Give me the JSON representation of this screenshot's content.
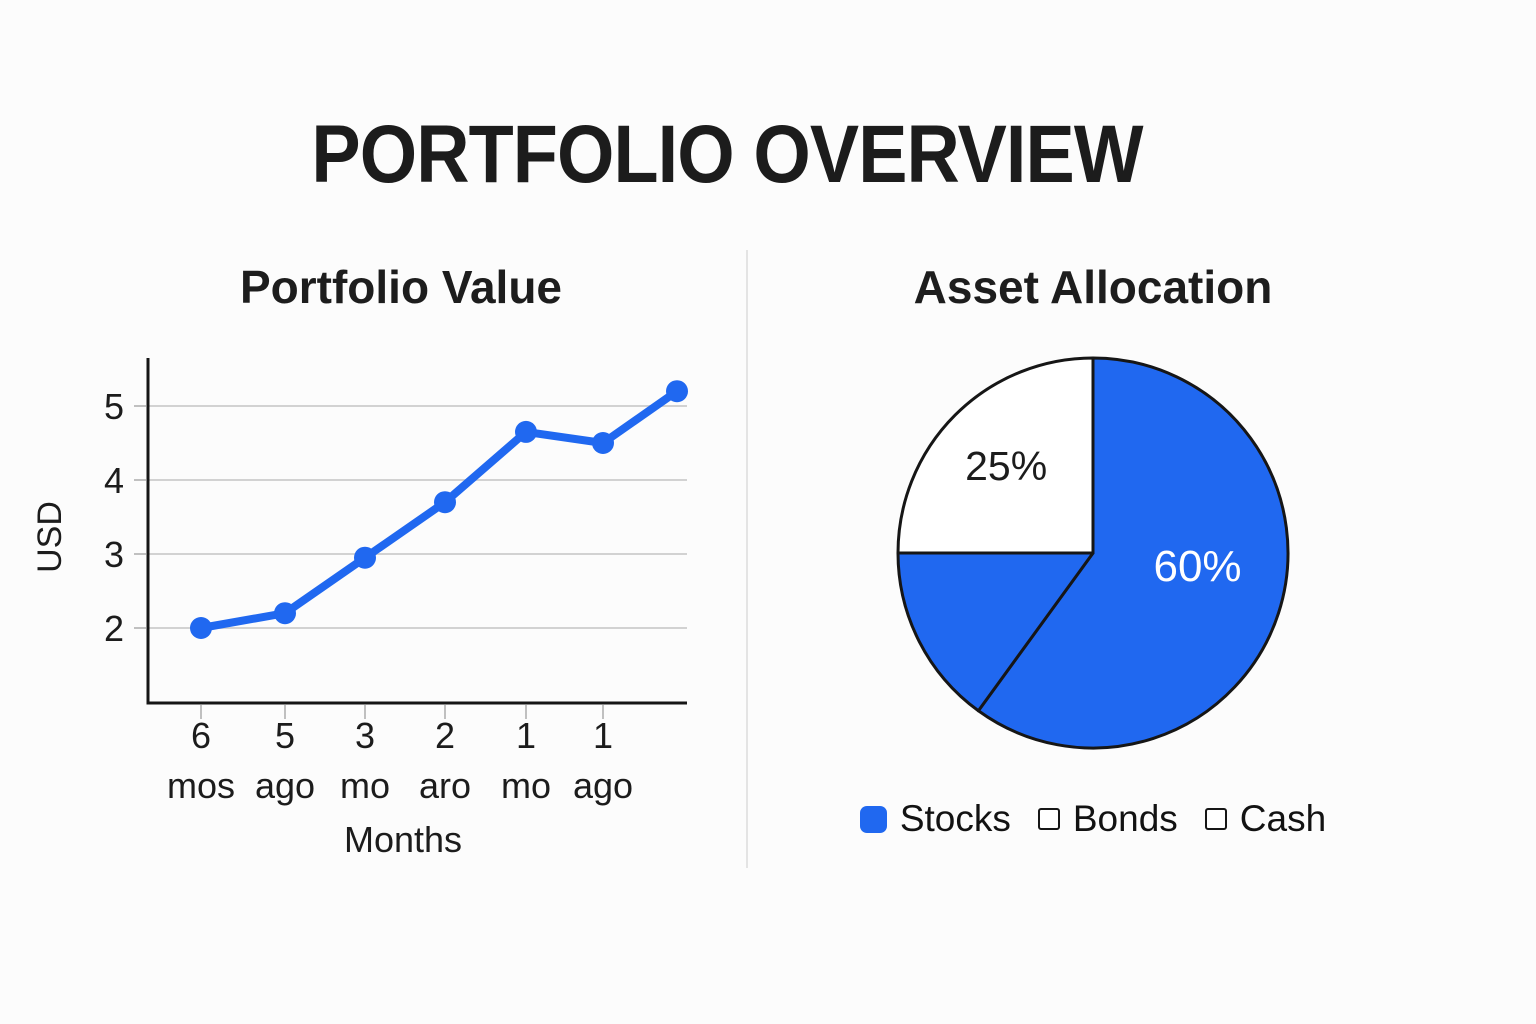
{
  "page": {
    "title": "PORTFOLIO OVERVIEW"
  },
  "colors": {
    "accent_blue": "#2068f0",
    "axis_black": "#161616",
    "grid_gray": "#d2d2d2",
    "tick_gray": "#c0c0c0",
    "text_dark": "#1c1c1c",
    "white": "#ffffff",
    "divider_gray": "#e4e4e4"
  },
  "chart_data": [
    {
      "type": "line",
      "title": "Portfolio Value",
      "xlabel": "Months",
      "ylabel": "USD",
      "x_tick_labels": [
        [
          "6",
          "mos"
        ],
        [
          "5",
          "ago"
        ],
        [
          "3",
          "mo"
        ],
        [
          "2",
          "aro"
        ],
        [
          "1",
          "mo"
        ],
        [
          "1",
          "ago"
        ]
      ],
      "values": [
        2.0,
        2.2,
        2.95,
        3.7,
        4.65,
        4.5,
        5.2
      ],
      "num_points": 7,
      "last_point_unlabeled": true,
      "y_ticks": [
        2,
        3,
        4,
        5
      ],
      "ylim": [
        1,
        5.6
      ],
      "grid": true,
      "line_color": "#2068f0",
      "marker": "circle"
    },
    {
      "type": "pie",
      "title": "Asset Allocation",
      "labels": [
        "Stocks",
        "Bonds",
        "Cash"
      ],
      "values": [
        60,
        15,
        25
      ],
      "slice_colors": [
        "#2068f0",
        "#2068f0",
        "#ffffff"
      ],
      "slice_labels": [
        {
          "text": "60%",
          "angle_deg": 97,
          "radius_frac": 0.54,
          "color": "#ffffff",
          "font_size": 44
        },
        null,
        {
          "text": "25%",
          "angle_deg": 315,
          "radius_frac": 0.63,
          "color": "#1c1c1c",
          "font_size": 41
        }
      ],
      "start_angle_deg": 0,
      "direction": "clockwise",
      "legend_position": "bottom",
      "legend": [
        {
          "label": "Stocks",
          "swatch": "filled"
        },
        {
          "label": "Bonds",
          "swatch": "outline"
        },
        {
          "label": "Cash",
          "swatch": "outline"
        }
      ]
    }
  ]
}
